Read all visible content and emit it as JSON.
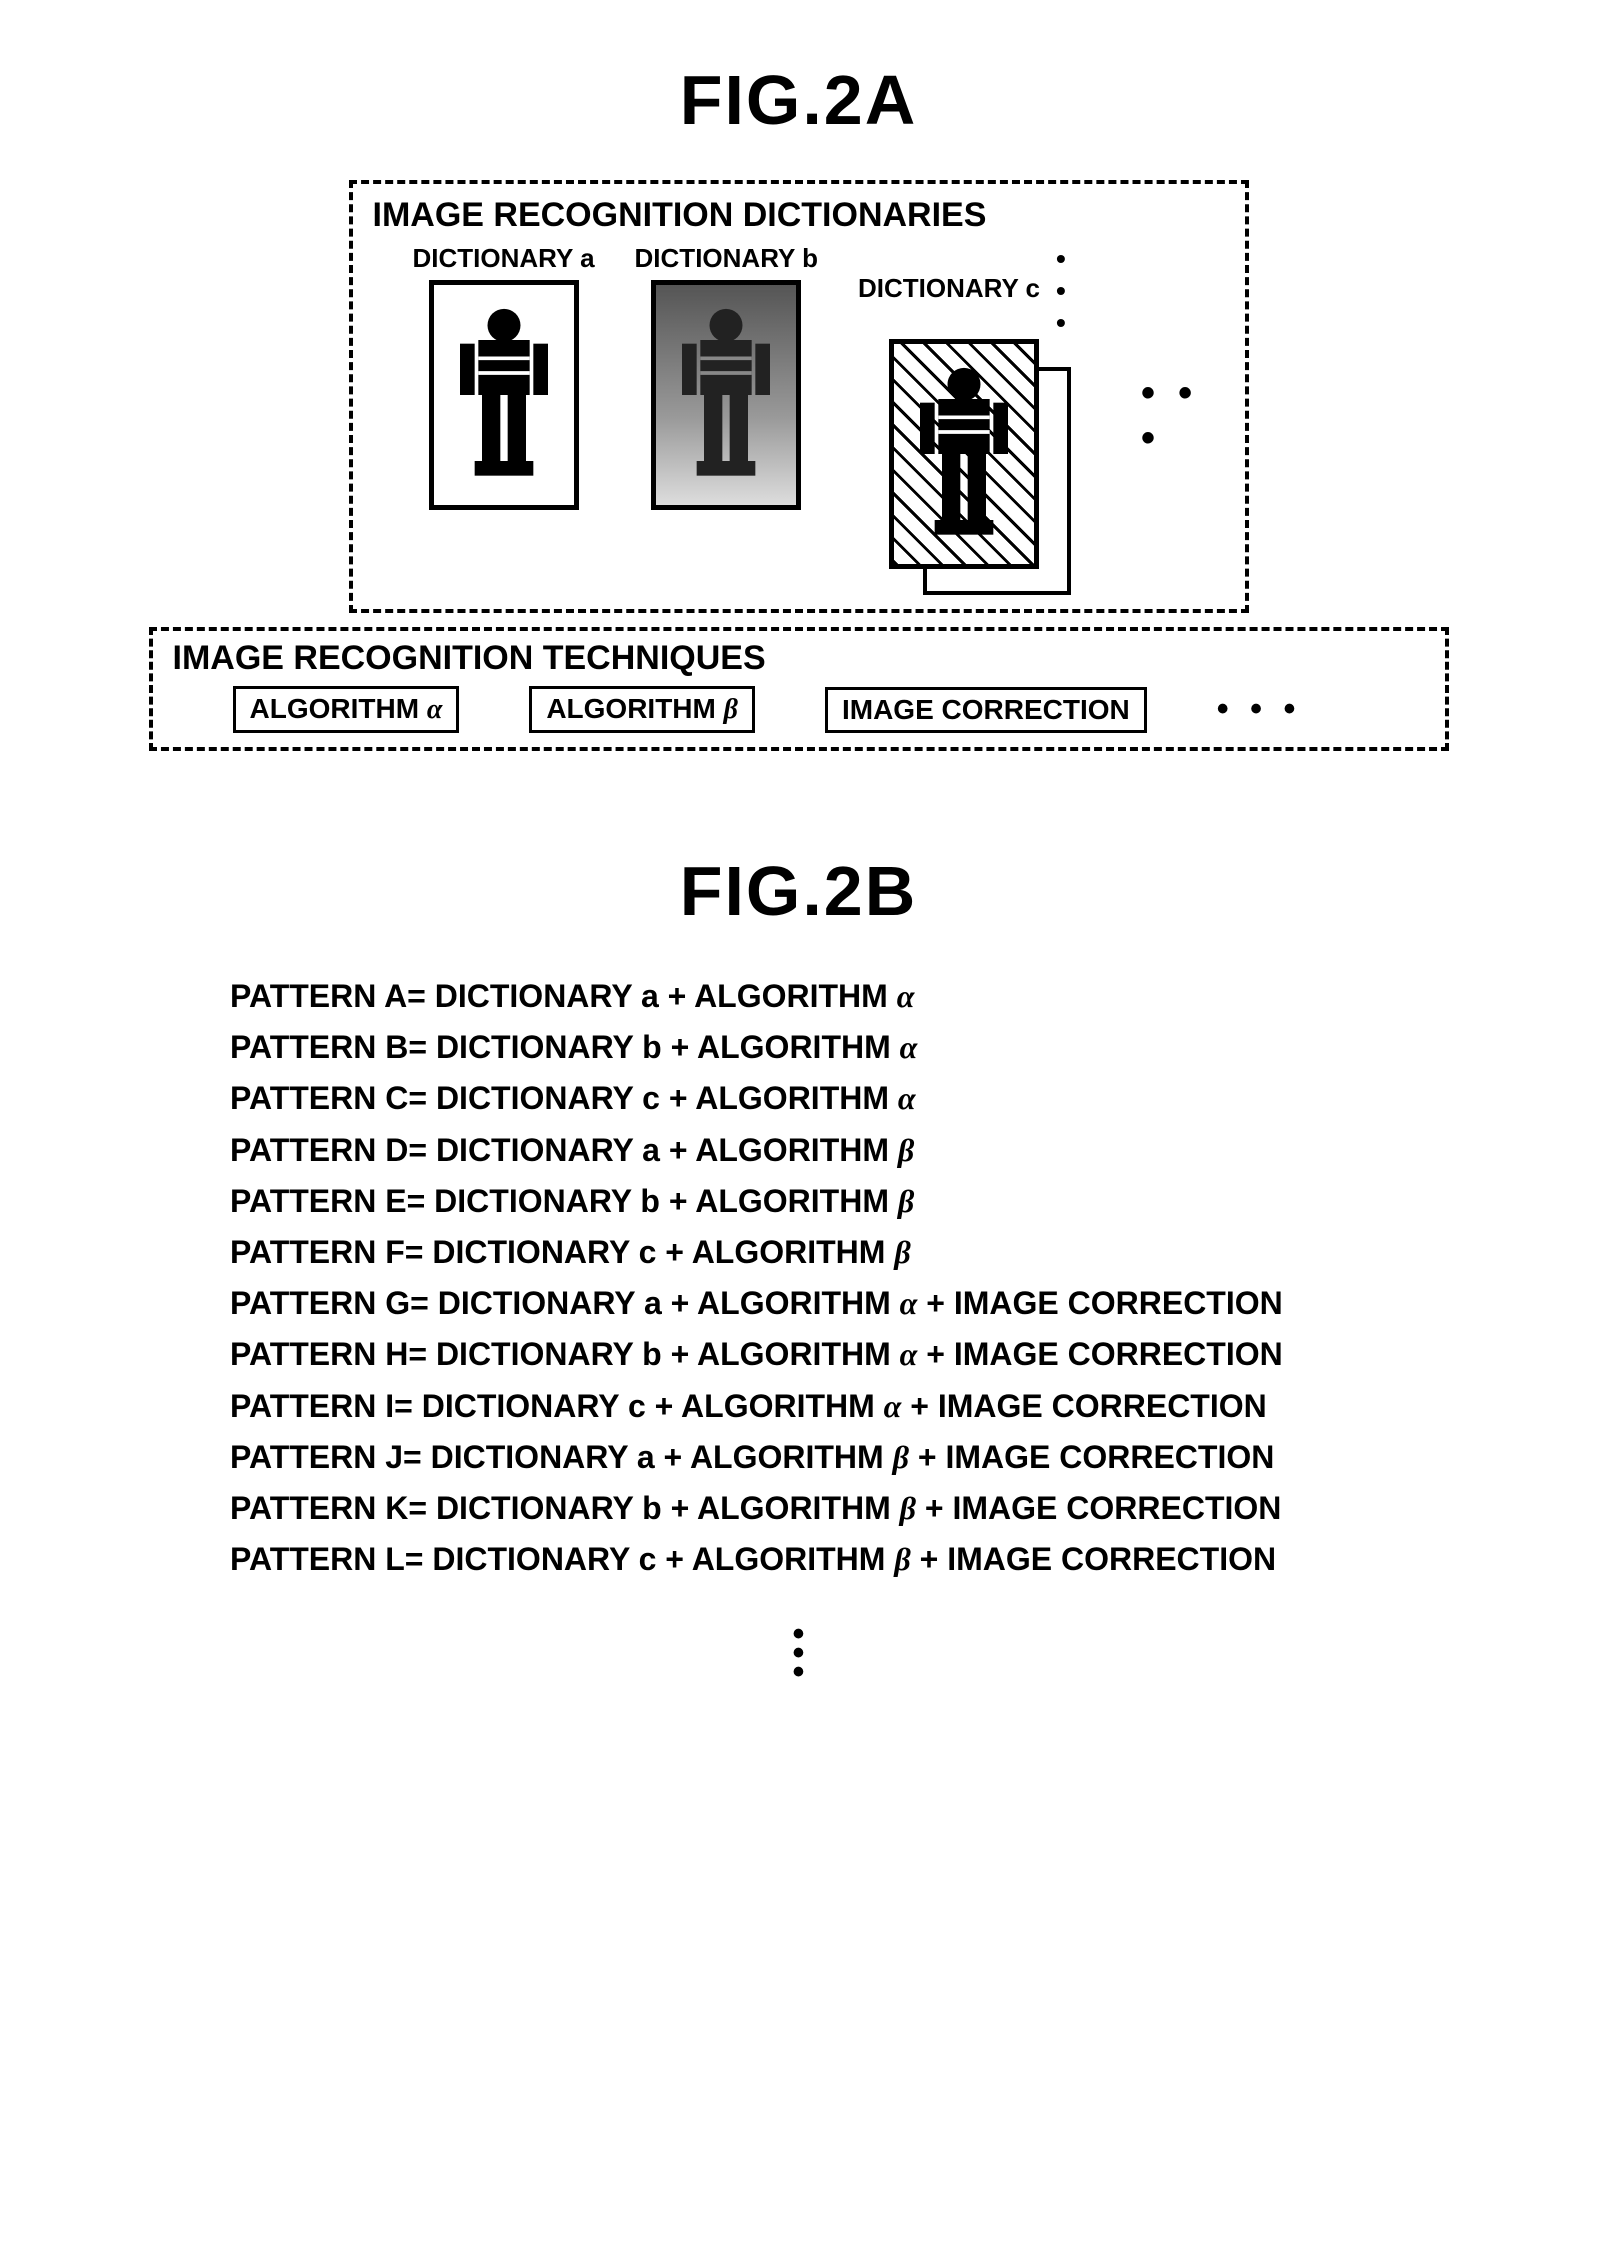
{
  "fig2a": {
    "title": "FIG.2A",
    "dictionaries": {
      "section_label": "IMAGE RECOGNITION DICTIONARIES",
      "items": [
        {
          "label": "DICTIONARY a",
          "style": "plain"
        },
        {
          "label": "DICTIONARY b",
          "style": "gray"
        },
        {
          "label": "DICTIONARY c",
          "style": "hatched_stack"
        }
      ],
      "top_ellipsis": "• • •",
      "side_ellipsis": "• • •"
    },
    "techniques": {
      "section_label": "IMAGE RECOGNITION TECHNIQUES",
      "items": [
        "ALGORITHM α",
        "ALGORITHM β",
        "IMAGE CORRECTION"
      ],
      "ellipsis": "• • •"
    }
  },
  "fig2b": {
    "title": "FIG.2B",
    "patterns": [
      "PATTERN A= DICTIONARY a + ALGORITHM α",
      "PATTERN B= DICTIONARY b + ALGORITHM α",
      "PATTERN C= DICTIONARY c + ALGORITHM α",
      "PATTERN D= DICTIONARY a + ALGORITHM β",
      "PATTERN E= DICTIONARY b + ALGORITHM β",
      "PATTERN F= DICTIONARY c + ALGORITHM β",
      "PATTERN G= DICTIONARY a + ALGORITHM α + IMAGE CORRECTION",
      "PATTERN H= DICTIONARY b + ALGORITHM α + IMAGE CORRECTION",
      "PATTERN I= DICTIONARY c + ALGORITHM α + IMAGE CORRECTION",
      "PATTERN J= DICTIONARY a + ALGORITHM β + IMAGE CORRECTION",
      "PATTERN K= DICTIONARY b + ALGORITHM β + IMAGE CORRECTION",
      "PATTERN L= DICTIONARY c + ALGORITHM β + IMAGE CORRECTION"
    ]
  },
  "style": {
    "text_color": "#000000",
    "bg_color": "#ffffff",
    "border_color": "#000000",
    "person_fill_dark": "#000000",
    "person_fill_gray": "#333333"
  }
}
